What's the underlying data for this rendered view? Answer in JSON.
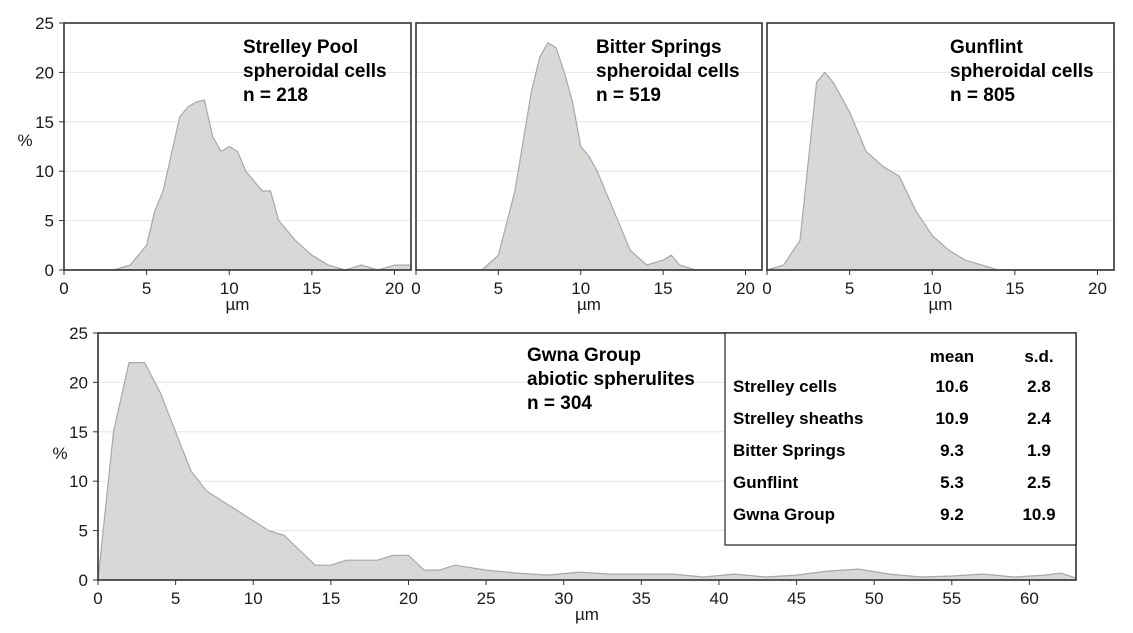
{
  "chart_data": [
    {
      "type": "area",
      "ylabel": "%",
      "xlabel": "µm",
      "xlim": [
        0,
        21
      ],
      "ylim": [
        0,
        25
      ],
      "xticks": [
        0,
        5,
        10,
        15,
        20
      ],
      "yticks": [
        0,
        5,
        10,
        15,
        20,
        25
      ],
      "grid": true,
      "annotation": [
        "Strelley Pool",
        "spheroidal cells",
        "n = 218"
      ],
      "series": [
        {
          "x": [
            0,
            3,
            4,
            5,
            5.5,
            6,
            7,
            7.5,
            8,
            8.5,
            9,
            9.5,
            10,
            10.5,
            11,
            12,
            12.5,
            13,
            14,
            15,
            16,
            17,
            18,
            19,
            20,
            21
          ],
          "y": [
            0,
            0,
            0.5,
            2.5,
            6,
            8,
            15.5,
            16.5,
            17,
            17.2,
            13.5,
            12,
            12.5,
            12,
            10,
            8,
            8,
            5,
            3,
            1.5,
            0.5,
            0,
            0.5,
            0,
            0.5,
            0.5
          ]
        }
      ]
    },
    {
      "type": "area",
      "xlabel": "µm",
      "xlim": [
        0,
        21
      ],
      "ylim": [
        0,
        25
      ],
      "xticks": [
        0,
        5,
        10,
        15,
        20
      ],
      "grid": true,
      "annotation": [
        "Bitter Springs",
        "spheroidal cells",
        "n = 519"
      ],
      "series": [
        {
          "x": [
            0,
            4,
            5,
            6,
            7,
            7.5,
            8,
            8.5,
            9,
            9.5,
            10,
            10.5,
            11,
            12,
            13,
            14,
            15,
            15.5,
            16,
            17,
            21
          ],
          "y": [
            0,
            0,
            1.5,
            8,
            18,
            21.5,
            23,
            22.5,
            20,
            17,
            12.5,
            11.5,
            10,
            6,
            2,
            0.5,
            1,
            1.5,
            0.5,
            0,
            0
          ]
        }
      ]
    },
    {
      "type": "area",
      "xlabel": "µm",
      "xlim": [
        0,
        21
      ],
      "ylim": [
        0,
        25
      ],
      "xticks": [
        0,
        5,
        10,
        15,
        20
      ],
      "grid": true,
      "annotation": [
        "Gunflint",
        "spheroidal cells",
        "n = 805"
      ],
      "series": [
        {
          "x": [
            0,
            1,
            2,
            3,
            3.5,
            4,
            5,
            6,
            7,
            8,
            9,
            10,
            11,
            12,
            13,
            14,
            21
          ],
          "y": [
            0,
            0.5,
            3,
            19,
            20,
            19,
            16,
            12,
            10.5,
            9.5,
            6,
            3.5,
            2,
            1,
            0.5,
            0,
            0
          ]
        }
      ]
    },
    {
      "type": "area",
      "ylabel": "%",
      "xlabel": "µm",
      "xlim": [
        0,
        63
      ],
      "ylim": [
        0,
        25
      ],
      "xticks": [
        0,
        5,
        10,
        15,
        20,
        25,
        30,
        35,
        40,
        45,
        50,
        55,
        60
      ],
      "yticks": [
        0,
        5,
        10,
        15,
        20,
        25
      ],
      "grid": true,
      "annotation": [
        "Gwna Group",
        "abiotic spherulites",
        "n = 304"
      ],
      "series": [
        {
          "x": [
            0,
            1,
            2,
            3,
            4,
            5,
            6,
            7,
            8,
            9,
            10,
            11,
            12,
            13,
            14,
            15,
            16,
            17,
            18,
            19,
            20,
            21,
            22,
            23,
            25,
            27,
            29,
            31,
            33,
            35,
            37,
            39,
            41,
            43,
            45,
            47,
            49,
            51,
            53,
            55,
            57,
            59,
            61,
            62,
            63
          ],
          "y": [
            0,
            15,
            22,
            22,
            19,
            15,
            11,
            9,
            8,
            7,
            6,
            5,
            4.5,
            3,
            1.5,
            1.5,
            2,
            2,
            2,
            2.5,
            2.5,
            1,
            1,
            1.5,
            1,
            0.7,
            0.5,
            0.8,
            0.6,
            0.6,
            0.6,
            0.3,
            0.6,
            0.3,
            0.5,
            0.9,
            1.1,
            0.6,
            0.3,
            0.4,
            0.6,
            0.3,
            0.5,
            0.7,
            0.2
          ]
        }
      ]
    }
  ],
  "stats_table": {
    "headers": [
      "",
      "mean",
      "s.d."
    ],
    "rows": [
      [
        "Strelley cells",
        "10.6",
        "2.8"
      ],
      [
        "Strelley sheaths",
        "10.9",
        "2.4"
      ],
      [
        "Bitter Springs",
        "9.3",
        "1.9"
      ],
      [
        "Gunflint",
        "5.3",
        "2.5"
      ],
      [
        "Gwna Group",
        "9.2",
        "10.9"
      ]
    ]
  },
  "colors": {
    "fill": "#d8d8d6",
    "stroke": "#a8a8a6",
    "grid": "#e6e6e6",
    "frame": "#333333"
  }
}
